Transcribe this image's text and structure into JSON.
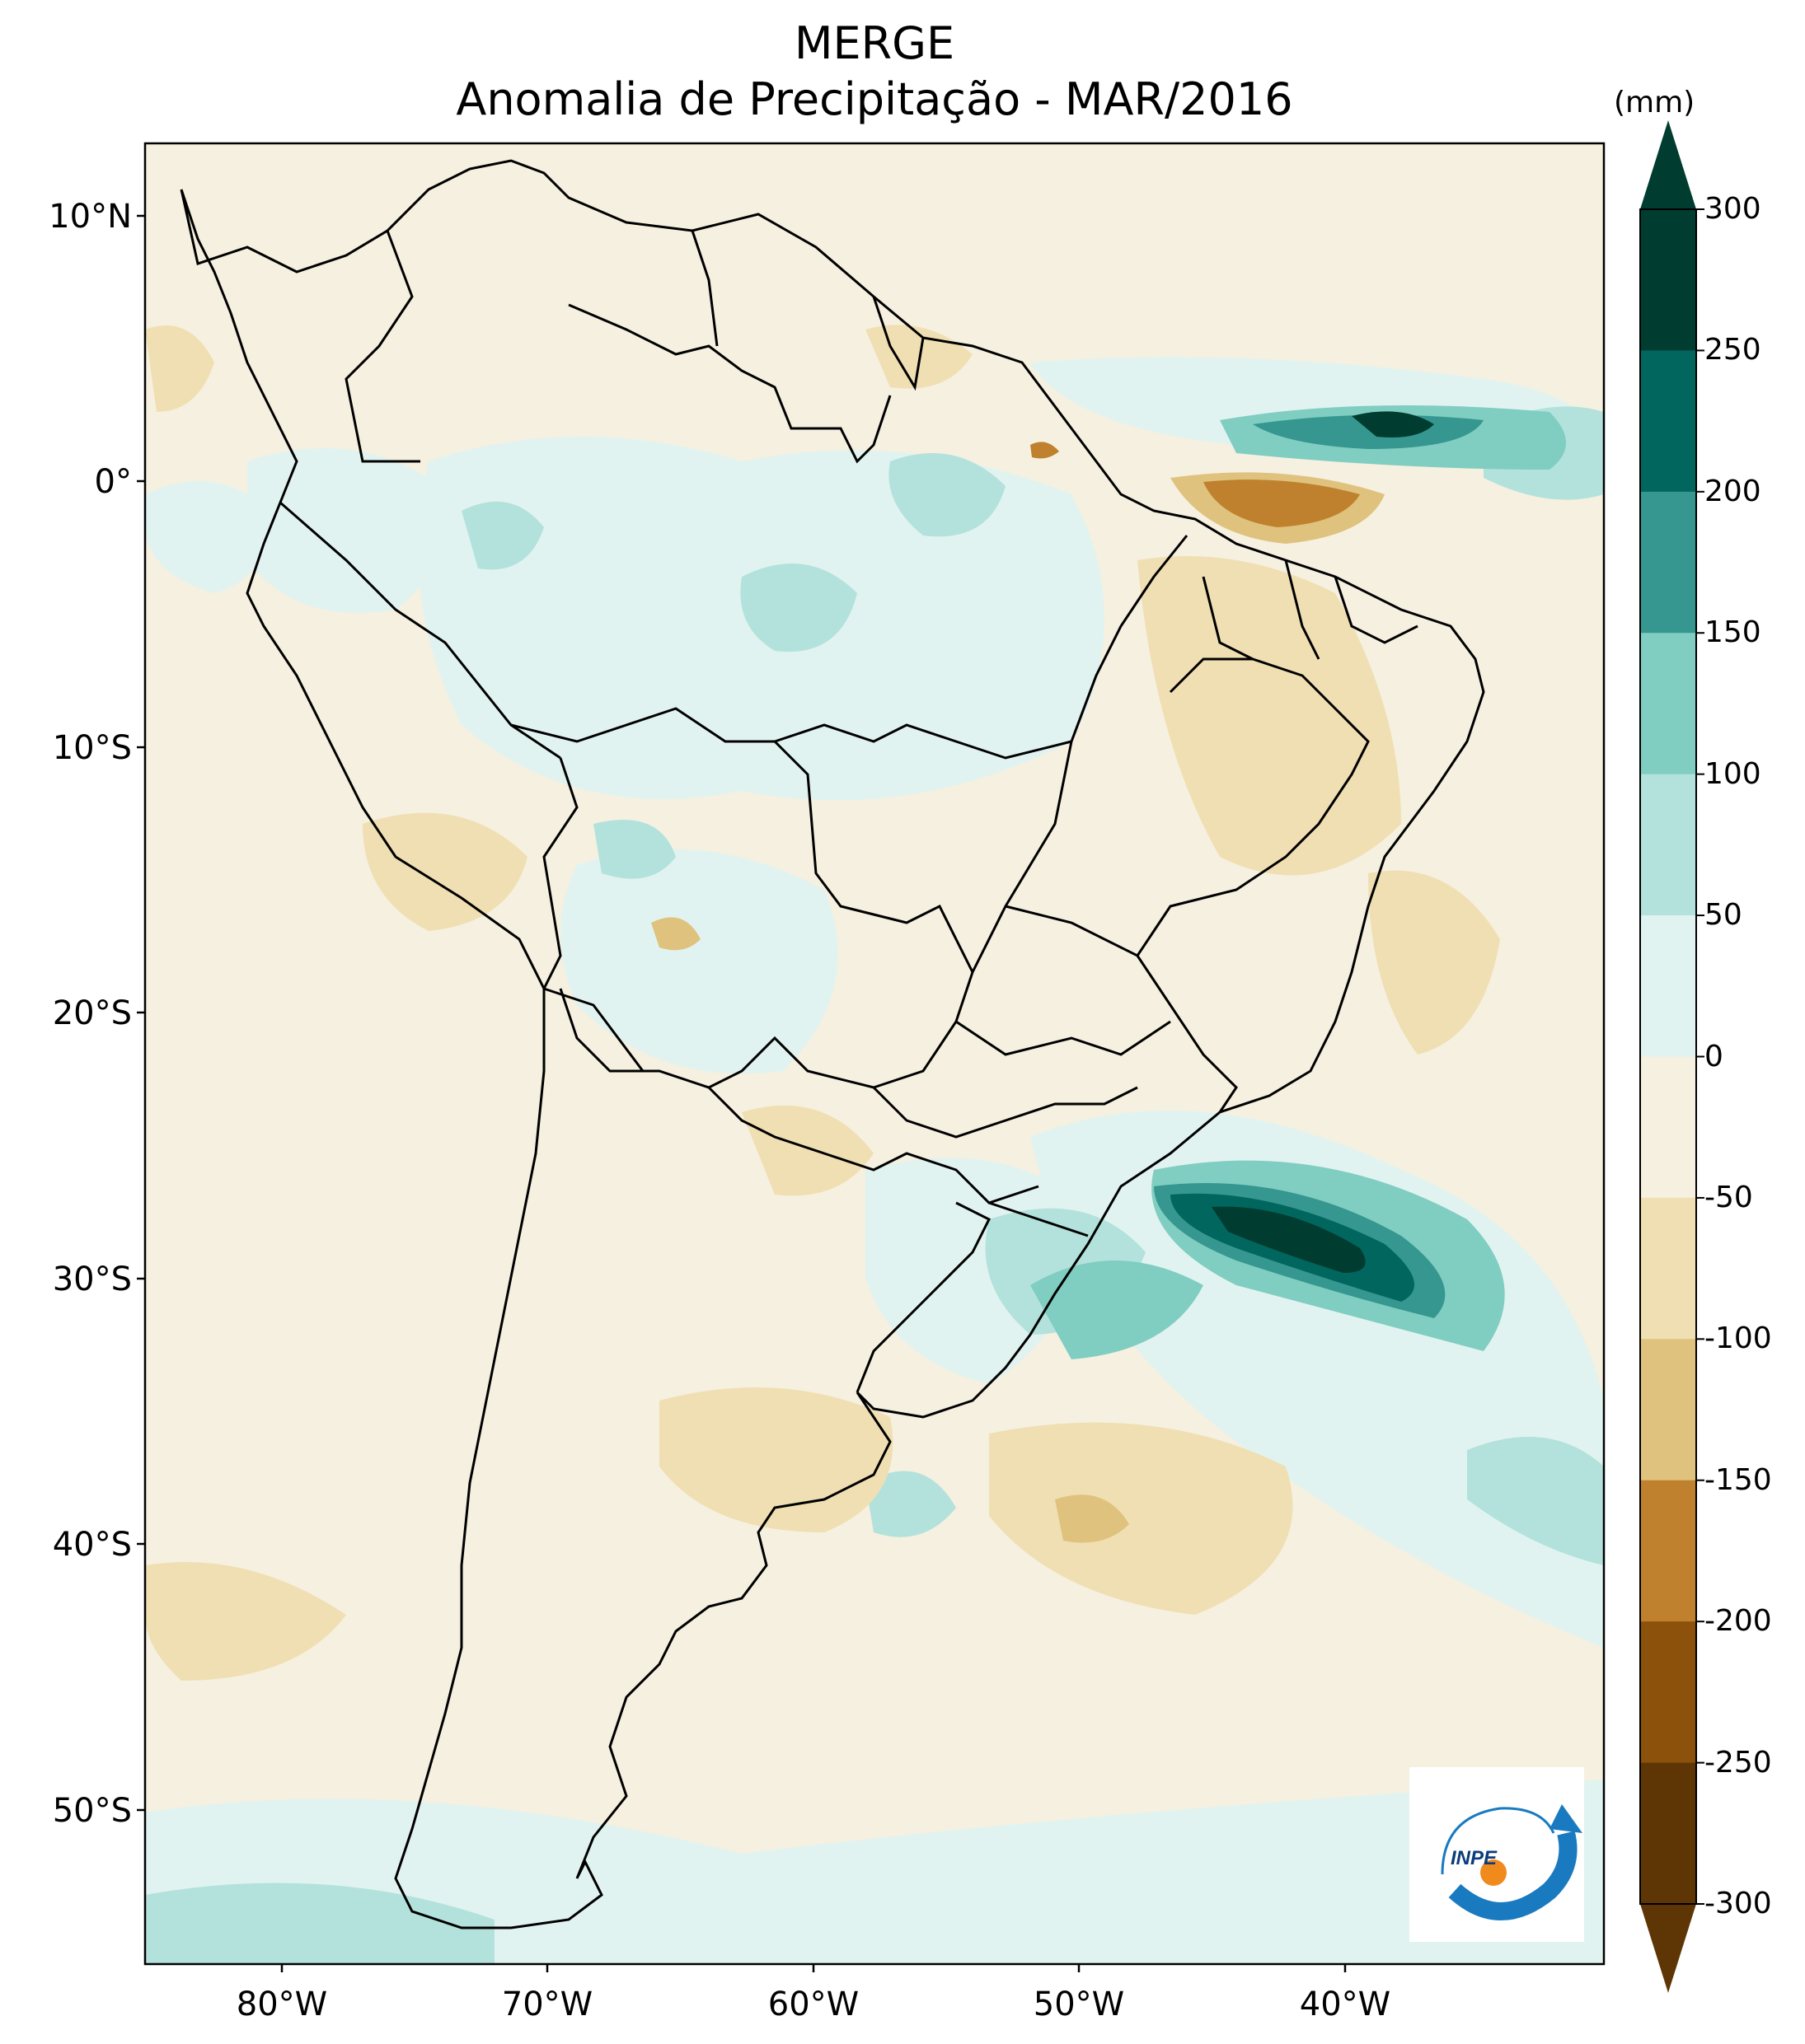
{
  "title": {
    "line1": "MERGE",
    "line2": "Anomalia de Precipitação - MAR/2016"
  },
  "axes": {
    "lat_ticks": [
      "10°N",
      "0°",
      "10°S",
      "20°S",
      "30°S",
      "40°S",
      "50°S"
    ],
    "lon_ticks": [
      "80°W",
      "70°W",
      "60°W",
      "50°W",
      "40°W"
    ]
  },
  "colorbar": {
    "units": "(mm)",
    "levels": [
      "300",
      "250",
      "200",
      "150",
      "100",
      "50",
      "0",
      "-50",
      "-100",
      "-150",
      "-200",
      "-250",
      "-300"
    ],
    "colors": [
      "#003c30",
      "#01665e",
      "#35978f",
      "#80cdc1",
      "#b3e2dc",
      "#e1f3f0",
      "#f5f0e0",
      "#f0dfb2",
      "#dfc27d",
      "#bf812d",
      "#8c510a",
      "#5e3505"
    ]
  },
  "logo": {
    "text": "INPE"
  },
  "colors": {
    "ocean_neutral": "#f5f0e0",
    "border": "#000000"
  }
}
